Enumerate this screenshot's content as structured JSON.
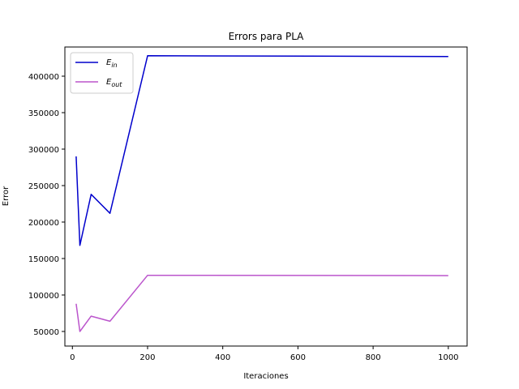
{
  "chart_data": {
    "type": "line",
    "title": "Errors para PLA",
    "xlabel": "Iteraciones",
    "ylabel": "Error",
    "xlim": [
      -20,
      1050
    ],
    "ylim": [
      30000,
      440000
    ],
    "xticks": [
      0,
      200,
      400,
      600,
      800,
      1000
    ],
    "yticks": [
      50000,
      100000,
      150000,
      200000,
      250000,
      300000,
      350000,
      400000
    ],
    "grid": false,
    "legend_position": "top-left",
    "series": [
      {
        "name": "E_in",
        "legend_main": "E",
        "legend_sub": "in",
        "color": "#0000cc",
        "x": [
          10,
          20,
          50,
          100,
          200,
          1000
        ],
        "y": [
          290000,
          168000,
          238000,
          212000,
          428000,
          427000
        ]
      },
      {
        "name": "E_out",
        "legend_main": "E",
        "legend_sub": "out",
        "color": "#bb55cc",
        "x": [
          10,
          20,
          50,
          100,
          200,
          1000
        ],
        "y": [
          88000,
          50000,
          71000,
          64000,
          127000,
          126500
        ]
      }
    ]
  }
}
